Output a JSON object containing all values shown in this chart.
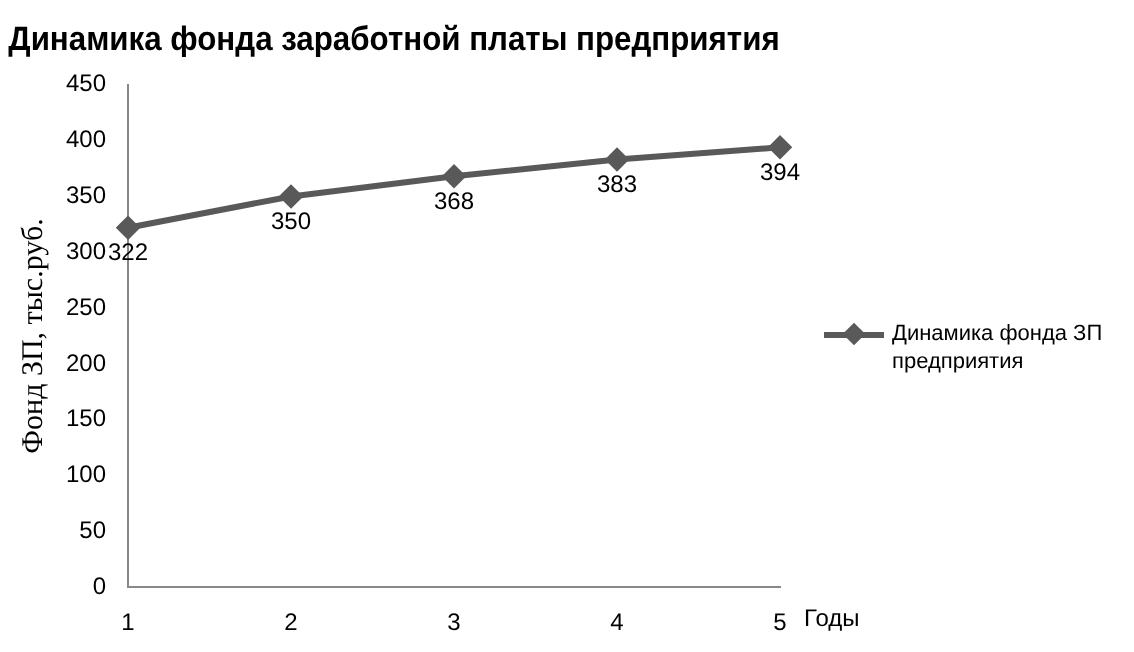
{
  "chart_data": {
    "type": "line",
    "title": "Динамика фонда заработной платы предприятия",
    "xlabel": "Годы",
    "ylabel": "Фонд ЗП, тыс.руб.",
    "categories": [
      "1",
      "2",
      "3",
      "4",
      "5"
    ],
    "series": [
      {
        "name": "Динамика фонда ЗП предприятия",
        "color": "#595959",
        "values": [
          322,
          350,
          368,
          383,
          394
        ]
      }
    ],
    "ylim": [
      0,
      450
    ],
    "yticks": [
      0,
      50,
      100,
      150,
      200,
      250,
      300,
      350,
      400,
      450
    ],
    "grid": false,
    "legend": "right",
    "marker": "diamond",
    "line_style": "solid",
    "data_labels": true
  }
}
